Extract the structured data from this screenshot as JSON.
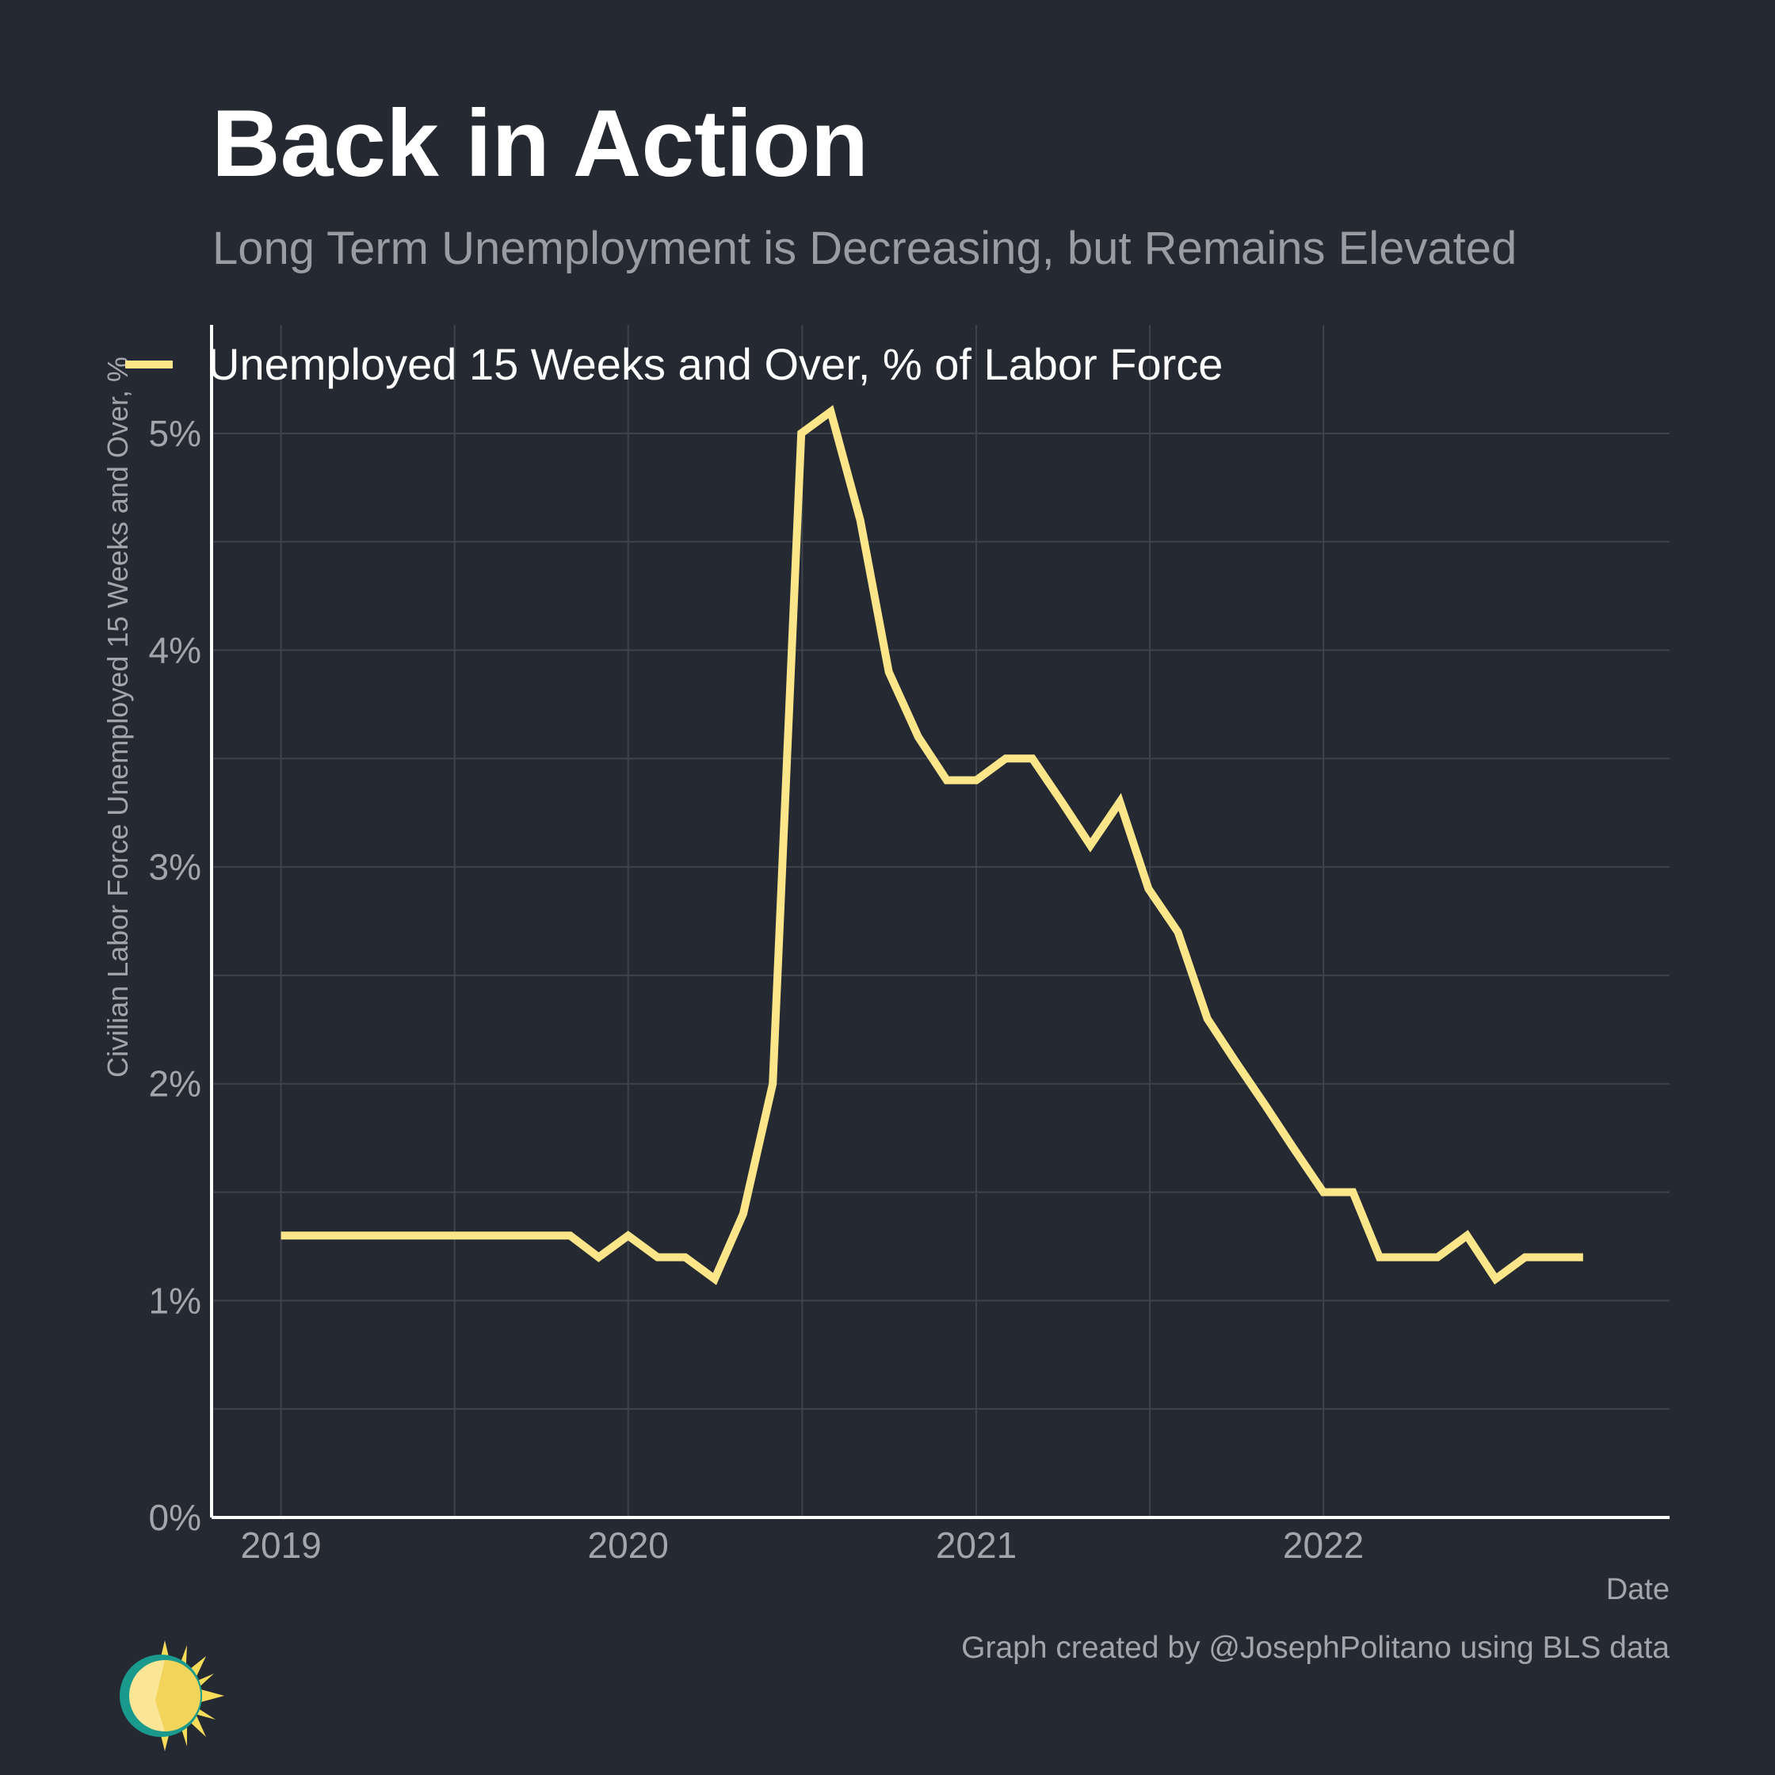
{
  "title": "Back in Action",
  "subtitle": "Long Term Unemployment is Decreasing, but Remains Elevated",
  "caption": "Graph created by @JosephPolitano using BLS data",
  "colors": {
    "background": "#252932",
    "line": "#fde68a",
    "grid": "#3f434c",
    "axis": "#ffffff",
    "tick_label": "#a3a5aa"
  },
  "chart_data": {
    "type": "line",
    "title": "Back in Action",
    "subtitle": "Long Term Unemployment is Decreasing, but Remains Elevated",
    "xlabel": "Date",
    "ylabel": "Civilian Labor Force Unemployed 15 Weeks and Over, %",
    "legend_position": "top-left",
    "grid": true,
    "xlim": [
      "2018-10-20",
      "2022-12-31"
    ],
    "ylim": [
      0,
      5.5
    ],
    "x_ticks": [
      {
        "date": "2019-01-01",
        "label": "2019"
      },
      {
        "date": "2020-01-01",
        "label": "2020"
      },
      {
        "date": "2021-01-01",
        "label": "2021"
      },
      {
        "date": "2022-01-01",
        "label": "2022"
      }
    ],
    "y_ticks": [
      {
        "value": 0,
        "label": "0%"
      },
      {
        "value": 1,
        "label": "1%"
      },
      {
        "value": 2,
        "label": "2%"
      },
      {
        "value": 3,
        "label": "3%"
      },
      {
        "value": 4,
        "label": "4%"
      },
      {
        "value": 5,
        "label": "5%"
      }
    ],
    "series": [
      {
        "name": "Unemployed 15 Weeks and Over, % of Labor Force",
        "x": [
          "2019-01-01",
          "2019-02-01",
          "2019-03-01",
          "2019-04-01",
          "2019-05-01",
          "2019-06-01",
          "2019-07-01",
          "2019-08-01",
          "2019-09-01",
          "2019-10-01",
          "2019-11-01",
          "2019-12-01",
          "2020-01-01",
          "2020-02-01",
          "2020-03-01",
          "2020-04-01",
          "2020-05-01",
          "2020-06-01",
          "2020-07-01",
          "2020-08-01",
          "2020-09-01",
          "2020-10-01",
          "2020-11-01",
          "2020-12-01",
          "2021-01-01",
          "2021-02-01",
          "2021-03-01",
          "2021-04-01",
          "2021-05-01",
          "2021-06-01",
          "2021-07-01",
          "2021-08-01",
          "2021-09-01",
          "2021-10-01",
          "2021-11-01",
          "2021-12-01",
          "2022-01-01",
          "2022-02-01",
          "2022-03-01",
          "2022-04-01",
          "2022-05-01",
          "2022-06-01",
          "2022-07-01",
          "2022-08-01",
          "2022-09-01",
          "2022-10-01"
        ],
        "values": [
          1.3,
          1.3,
          1.3,
          1.3,
          1.3,
          1.3,
          1.3,
          1.3,
          1.3,
          1.3,
          1.3,
          1.2,
          1.3,
          1.2,
          1.2,
          1.1,
          1.4,
          2.0,
          5.0,
          5.1,
          4.6,
          3.9,
          3.6,
          3.4,
          3.4,
          3.5,
          3.5,
          3.3,
          3.1,
          3.3,
          2.9,
          2.7,
          2.3,
          2.1,
          1.9,
          1.7,
          1.5,
          1.5,
          1.2,
          1.2,
          1.2,
          1.3,
          1.1,
          1.2,
          1.2,
          1.2
        ]
      }
    ]
  }
}
